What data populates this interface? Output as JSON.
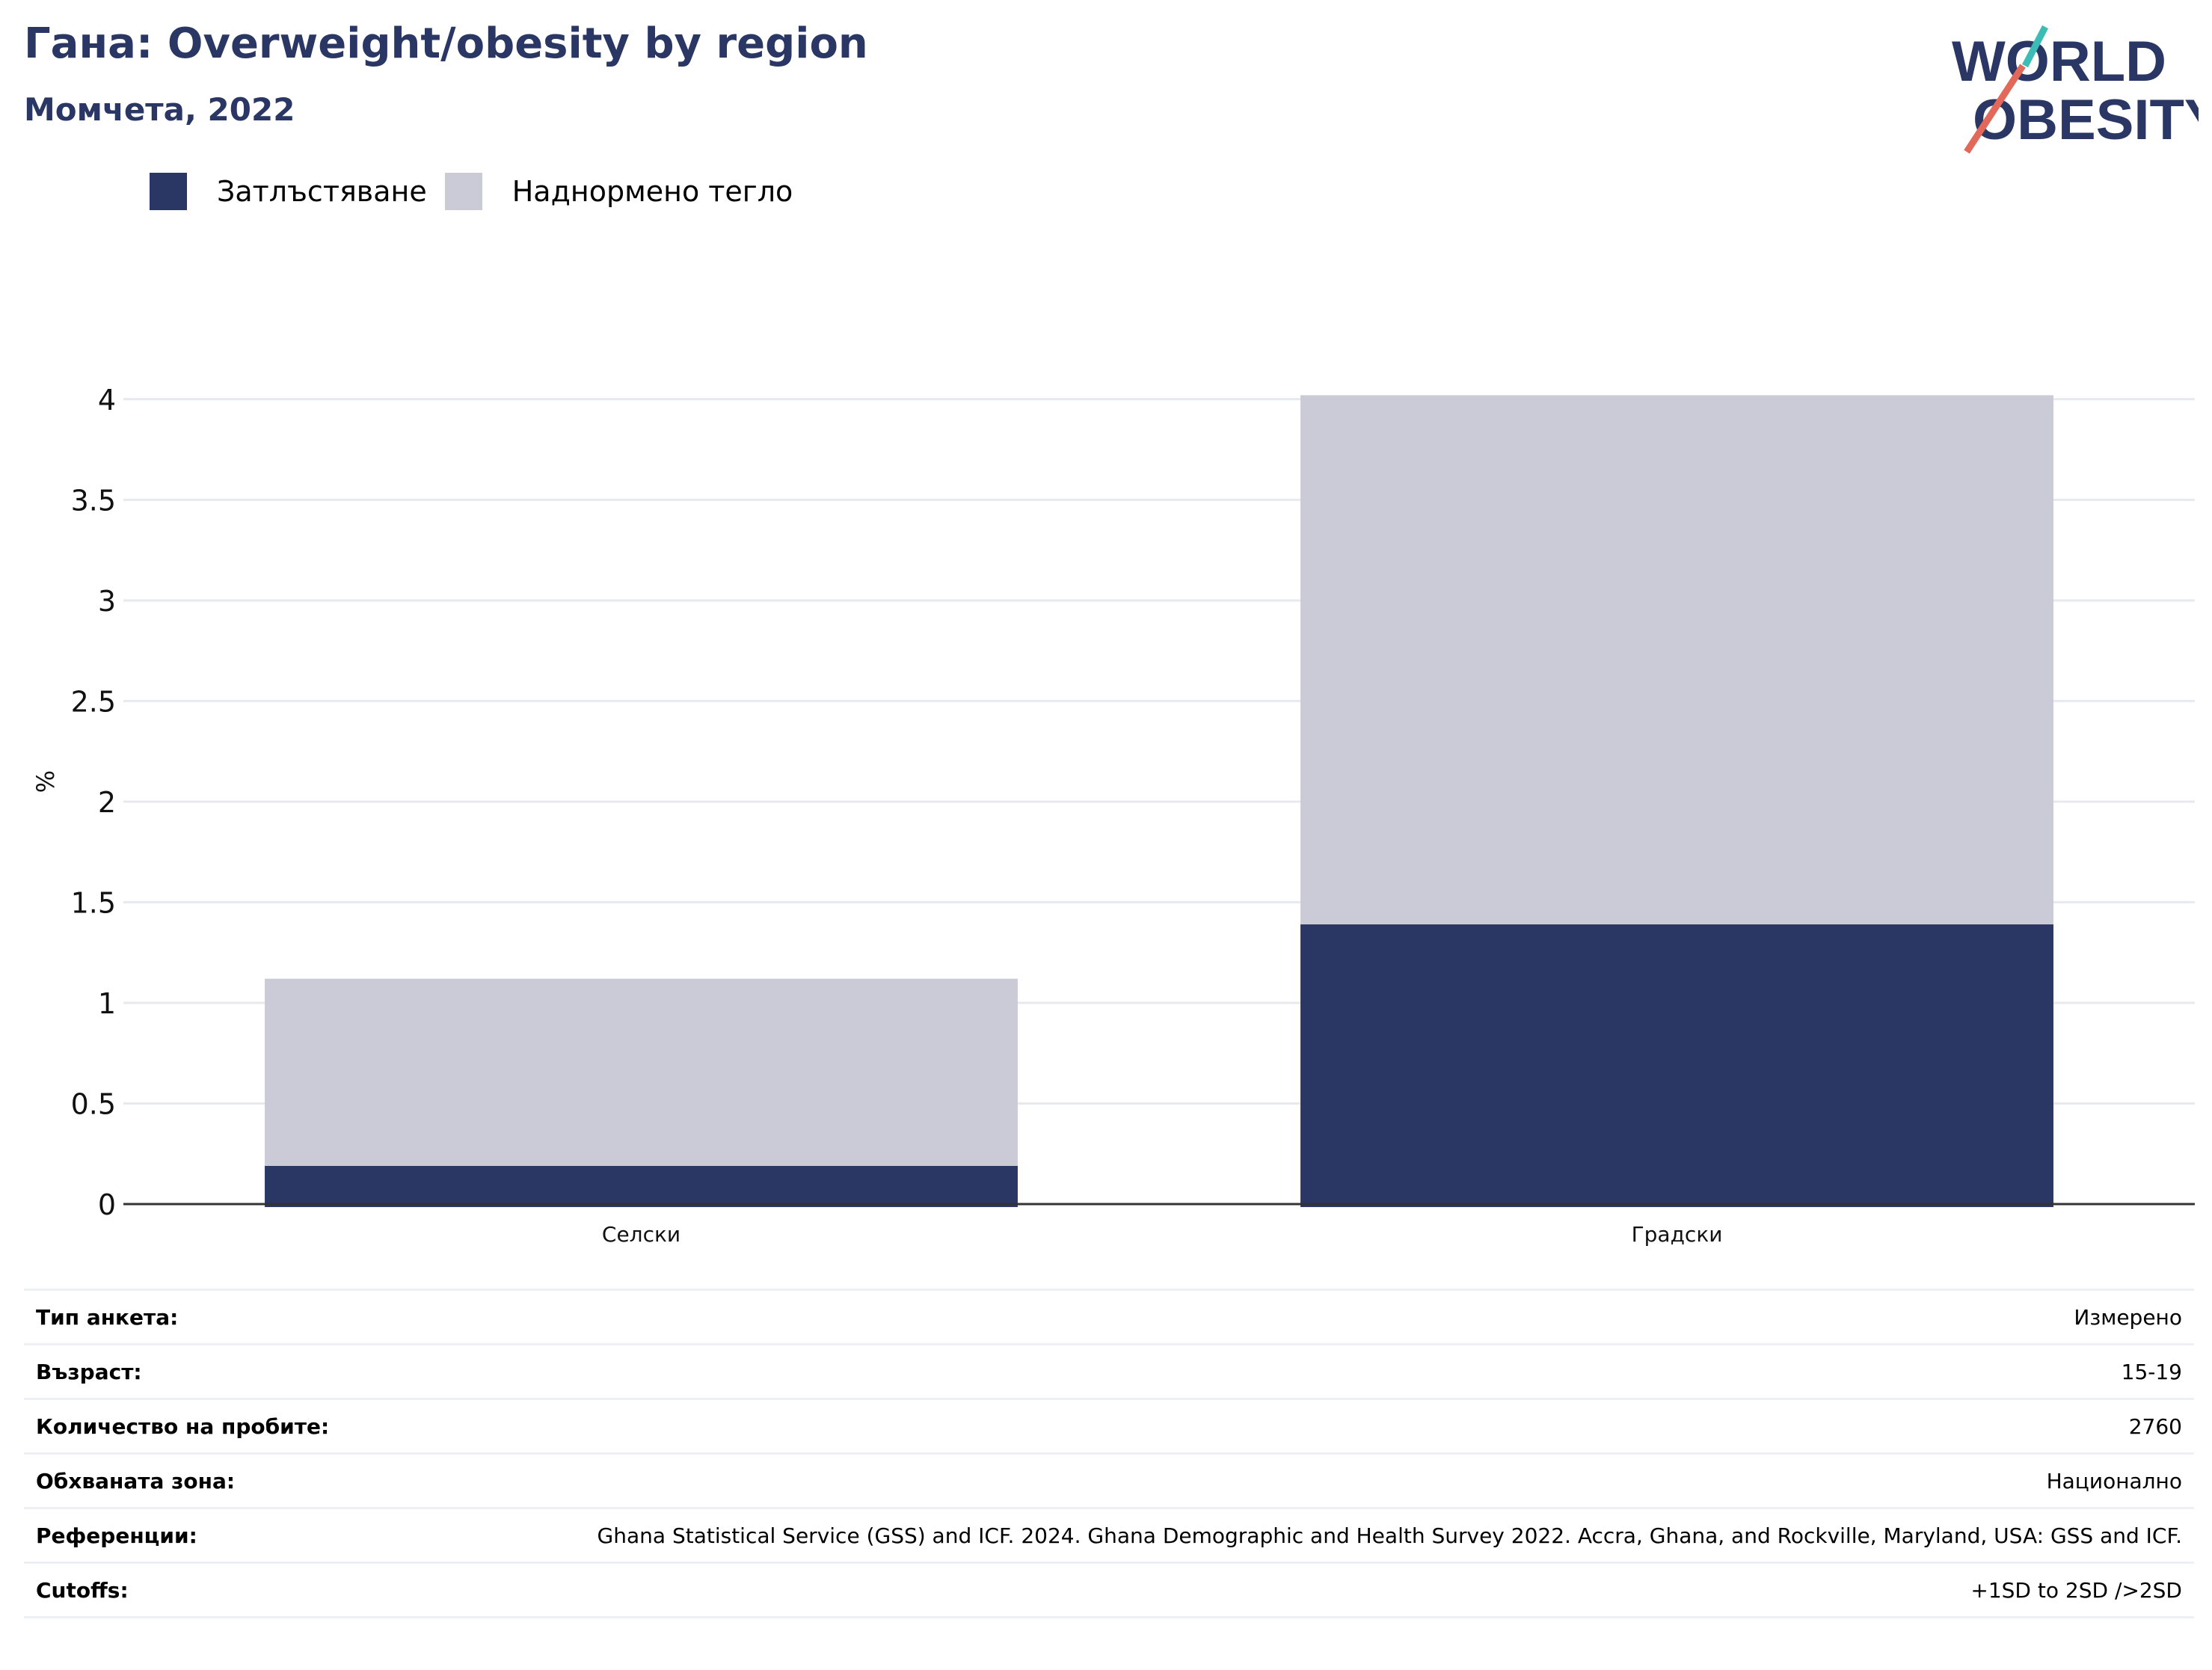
{
  "header": {
    "title": "Гана: Overweight/obesity by region",
    "subtitle": "Момчета, 2022"
  },
  "logo": {
    "line1": "WORLD",
    "line2": "OBESITY"
  },
  "colors": {
    "obesity": "#2a3663",
    "overweight": "#cacbd7",
    "title": "#2a3663",
    "grid": "#e8e9ef",
    "axis": "#333333"
  },
  "chart_data": {
    "type": "bar",
    "stacked": true,
    "categories": [
      "Селски",
      "Градски"
    ],
    "series": [
      {
        "name": "Затлъстяване",
        "values": [
          0.19,
          1.39
        ]
      },
      {
        "name": "Наднормено тегло",
        "values": [
          0.93,
          2.63
        ]
      }
    ],
    "ylabel": "%",
    "ylim": [
      0,
      4.2
    ],
    "yticks": [
      "0",
      "0.5",
      "1",
      "1.5",
      "2",
      "2.5",
      "3",
      "3.5",
      "4"
    ],
    "grid": true,
    "legend_position": "top-left"
  },
  "details": [
    {
      "key": "Тип анкета:",
      "value": "Измерено"
    },
    {
      "key": "Възраст:",
      "value": "15-19"
    },
    {
      "key": "Количество на пробите:",
      "value": "2760"
    },
    {
      "key": "Обхваната зона:",
      "value": "Национално"
    },
    {
      "key": "Референции:",
      "value": "Ghana Statistical Service (GSS) and ICF. 2024. Ghana Demographic and Health Survey 2022. Accra, Ghana, and Rockville, Maryland, USA: GSS and ICF."
    },
    {
      "key": "Cutoffs:",
      "value": "+1SD to 2SD />2SD"
    }
  ]
}
